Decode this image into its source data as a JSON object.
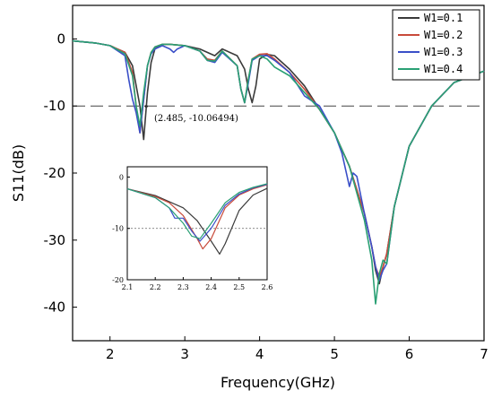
{
  "chart_data": [
    {
      "type": "line",
      "xlabel": "Frequency(GHz)",
      "ylabel": "S11(dB)",
      "xlim": [
        1.5,
        7.0
      ],
      "ylim": [
        -45,
        5
      ],
      "xticks": [
        "2",
        "3",
        "4",
        "5",
        "6",
        "7"
      ],
      "yticks": [
        "0",
        "-10",
        "-20",
        "-30",
        "-40"
      ],
      "xtick_values": [
        2,
        3,
        4,
        5,
        6,
        7
      ],
      "ytick_values": [
        0,
        -10,
        -20,
        -30,
        -40
      ],
      "grid": false,
      "legend_position": "top-right",
      "reference_line": {
        "y": -10,
        "style": "dashed"
      },
      "annotation": {
        "text": "(2.485, -10.06494)",
        "x": 2.485,
        "y": -10.06494
      },
      "series": [
        {
          "name": "W1=0.1",
          "color": "#3a3a3a",
          "x": [
            1.5,
            1.8,
            2.0,
            2.2,
            2.3,
            2.4,
            2.45,
            2.5,
            2.55,
            2.6,
            2.7,
            2.8,
            3.0,
            3.2,
            3.3,
            3.4,
            3.5,
            3.7,
            3.8,
            3.85,
            3.9,
            3.95,
            4.0,
            4.1,
            4.2,
            4.4,
            4.6,
            4.8,
            5.0,
            5.2,
            5.4,
            5.5,
            5.55,
            5.6,
            5.65,
            5.7,
            5.8,
            6.0,
            6.3,
            6.6,
            7.0
          ],
          "y": [
            -0.3,
            -0.6,
            -1.0,
            -2.0,
            -4.0,
            -10.0,
            -15.0,
            -8.0,
            -3.5,
            -1.5,
            -0.8,
            -0.8,
            -1.0,
            -1.5,
            -2.0,
            -2.5,
            -1.5,
            -2.5,
            -4.5,
            -7.5,
            -9.5,
            -7.0,
            -3.0,
            -2.3,
            -2.5,
            -4.5,
            -7.0,
            -10.5,
            -14.0,
            -19.0,
            -26.0,
            -31.0,
            -34.5,
            -36.5,
            -34.0,
            -32.0,
            -25.0,
            -16.0,
            -10.0,
            -6.5,
            -4.8
          ]
        },
        {
          "name": "W1=0.2",
          "color": "#c84a3a",
          "x": [
            1.5,
            1.8,
            2.0,
            2.2,
            2.3,
            2.35,
            2.4,
            2.45,
            2.5,
            2.55,
            2.6,
            2.7,
            2.8,
            3.0,
            3.2,
            3.3,
            3.4,
            3.5,
            3.7,
            3.75,
            3.8,
            3.85,
            3.9,
            4.0,
            4.1,
            4.2,
            4.4,
            4.6,
            4.8,
            5.0,
            5.2,
            5.4,
            5.5,
            5.55,
            5.6,
            5.65,
            5.7,
            5.8,
            6.0,
            6.3,
            6.6,
            7.0
          ],
          "y": [
            -0.3,
            -0.6,
            -1.0,
            -2.0,
            -5.0,
            -10.0,
            -14.0,
            -9.0,
            -4.0,
            -2.0,
            -1.2,
            -0.8,
            -0.8,
            -1.0,
            -1.8,
            -3.0,
            -3.2,
            -1.8,
            -4.0,
            -7.5,
            -9.5,
            -6.0,
            -3.0,
            -2.3,
            -2.2,
            -3.0,
            -5.0,
            -7.5,
            -10.5,
            -14.0,
            -19.0,
            -26.0,
            -31.0,
            -34.0,
            -35.5,
            -34.0,
            -32.0,
            -25.0,
            -16.0,
            -10.0,
            -6.5,
            -4.8
          ]
        },
        {
          "name": "W1=0.3",
          "color": "#3a4fc8",
          "x": [
            1.5,
            1.8,
            2.0,
            2.2,
            2.25,
            2.3,
            2.35,
            2.4,
            2.45,
            2.5,
            2.55,
            2.6,
            2.7,
            2.8,
            2.85,
            2.9,
            3.0,
            3.2,
            3.3,
            3.4,
            3.5,
            3.7,
            3.75,
            3.8,
            3.85,
            3.9,
            4.0,
            4.1,
            4.2,
            4.4,
            4.6,
            4.8,
            5.0,
            5.1,
            5.2,
            5.25,
            5.3,
            5.4,
            5.5,
            5.55,
            5.6,
            5.65,
            5.7,
            5.8,
            6.0,
            6.3,
            6.6,
            7.0
          ],
          "y": [
            -0.3,
            -0.6,
            -1.0,
            -2.5,
            -6.0,
            -9.0,
            -11.0,
            -14.0,
            -9.0,
            -4.0,
            -2.2,
            -1.5,
            -1.0,
            -1.5,
            -2.0,
            -1.5,
            -1.0,
            -1.8,
            -3.2,
            -3.5,
            -2.0,
            -4.0,
            -7.5,
            -9.5,
            -6.5,
            -3.2,
            -2.5,
            -2.5,
            -3.2,
            -5.0,
            -8.5,
            -10.0,
            -14.0,
            -17.0,
            -22.0,
            -20.0,
            -20.5,
            -26.0,
            -31.0,
            -34.0,
            -36.0,
            -34.5,
            -33.5,
            -25.0,
            -16.0,
            -10.0,
            -6.5,
            -4.8
          ]
        },
        {
          "name": "W1=0.4",
          "color": "#2aa074",
          "x": [
            1.5,
            1.8,
            2.0,
            2.2,
            2.3,
            2.35,
            2.4,
            2.45,
            2.5,
            2.55,
            2.6,
            2.7,
            2.8,
            3.0,
            3.2,
            3.3,
            3.4,
            3.5,
            3.7,
            3.75,
            3.8,
            3.85,
            3.9,
            4.0,
            4.1,
            4.2,
            4.4,
            4.6,
            4.8,
            5.0,
            5.2,
            5.4,
            5.5,
            5.55,
            5.6,
            5.65,
            5.7,
            5.8,
            6.0,
            6.3,
            6.6,
            7.0
          ],
          "y": [
            -0.3,
            -0.6,
            -1.0,
            -2.2,
            -5.5,
            -10.0,
            -13.0,
            -8.0,
            -4.0,
            -2.0,
            -1.2,
            -0.8,
            -0.8,
            -1.0,
            -1.8,
            -3.2,
            -3.3,
            -1.8,
            -4.0,
            -7.5,
            -9.5,
            -6.0,
            -3.0,
            -2.5,
            -3.0,
            -4.2,
            -5.5,
            -8.0,
            -10.5,
            -14.0,
            -19.0,
            -27.0,
            -33.0,
            -39.5,
            -35.0,
            -33.0,
            -33.5,
            -25.0,
            -16.0,
            -10.0,
            -6.5,
            -4.8
          ]
        }
      ]
    },
    {
      "type": "line",
      "inset": true,
      "xlim": [
        2.1,
        2.6
      ],
      "ylim": [
        -20,
        2
      ],
      "xticks": [
        "2.1",
        "2.2",
        "2.3",
        "2.4",
        "2.5",
        "2.6"
      ],
      "yticks": [
        "0",
        "-10",
        "-20"
      ],
      "xtick_values": [
        2.1,
        2.2,
        2.3,
        2.4,
        2.5,
        2.6
      ],
      "ytick_values": [
        0,
        -10,
        -20
      ],
      "reference_line": {
        "y": -10,
        "style": "dotted"
      },
      "series": [
        {
          "name": "W1=0.1",
          "color": "#3a3a3a",
          "x": [
            2.1,
            2.2,
            2.3,
            2.35,
            2.4,
            2.43,
            2.45,
            2.5,
            2.55,
            2.6
          ],
          "y": [
            -2.3,
            -3.6,
            -6.0,
            -8.5,
            -12.5,
            -15.0,
            -13.0,
            -6.5,
            -3.5,
            -2.2
          ]
        },
        {
          "name": "W1=0.2",
          "color": "#c84a3a",
          "x": [
            2.1,
            2.2,
            2.25,
            2.3,
            2.35,
            2.37,
            2.4,
            2.45,
            2.5,
            2.55,
            2.6
          ],
          "y": [
            -2.3,
            -3.8,
            -5.0,
            -7.5,
            -12.0,
            -14.0,
            -12.0,
            -6.0,
            -3.5,
            -2.3,
            -1.5
          ]
        },
        {
          "name": "W1=0.3",
          "color": "#3a4fc8",
          "x": [
            2.1,
            2.2,
            2.25,
            2.27,
            2.3,
            2.33,
            2.36,
            2.4,
            2.45,
            2.5,
            2.55,
            2.6
          ],
          "y": [
            -2.3,
            -4.0,
            -6.0,
            -8.0,
            -8.0,
            -10.5,
            -12.5,
            -10.0,
            -5.5,
            -3.3,
            -2.1,
            -1.4
          ]
        },
        {
          "name": "W1=0.4",
          "color": "#2aa074",
          "x": [
            2.1,
            2.2,
            2.25,
            2.3,
            2.33,
            2.36,
            2.4,
            2.45,
            2.5,
            2.55,
            2.6
          ],
          "y": [
            -2.3,
            -4.0,
            -6.0,
            -9.0,
            -11.5,
            -12.0,
            -9.0,
            -5.0,
            -3.0,
            -2.0,
            -1.3
          ]
        }
      ]
    }
  ]
}
